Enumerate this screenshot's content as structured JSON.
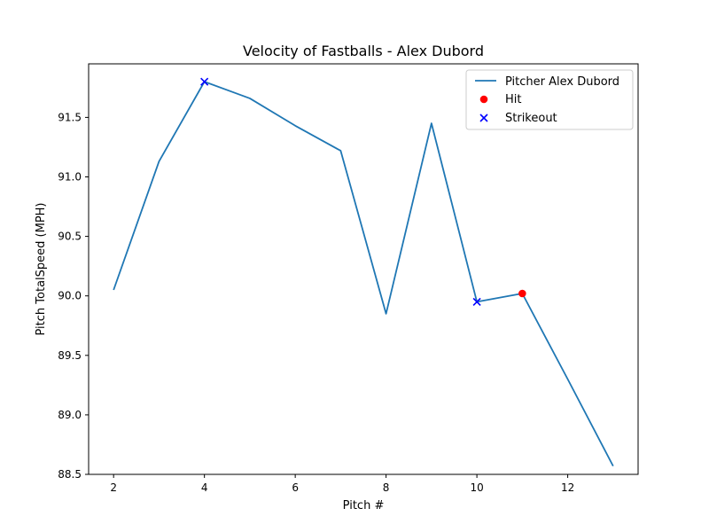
{
  "chart_data": {
    "type": "line",
    "title": "Velocity of Fastballs - Alex Dubord",
    "xlabel": "Pitch #",
    "ylabel": "Pitch TotalSpeed (MPH)",
    "xlim": [
      1.45,
      13.55
    ],
    "ylim": [
      88.5,
      91.95
    ],
    "xticks": [
      2,
      4,
      6,
      8,
      10,
      12
    ],
    "yticks": [
      88.5,
      89.0,
      89.5,
      90.0,
      90.5,
      91.0,
      91.5
    ],
    "ytick_labels": [
      "88.5",
      "89.0",
      "89.5",
      "90.0",
      "90.5",
      "91.0",
      "91.5"
    ],
    "grid": false,
    "legend_position": "top-right",
    "series": [
      {
        "name": "Pitcher Alex Dubord",
        "kind": "line",
        "color": "#1f77b4",
        "x": [
          2,
          3,
          4,
          5,
          6,
          7,
          8,
          9,
          10,
          11,
          12,
          13
        ],
        "y": [
          90.05,
          91.13,
          91.8,
          91.66,
          91.43,
          91.22,
          89.85,
          91.45,
          89.95,
          90.02,
          89.3,
          88.57
        ]
      },
      {
        "name": "Hit",
        "kind": "scatter",
        "marker": "circle",
        "color": "#ff0000",
        "x": [
          11
        ],
        "y": [
          90.02
        ]
      },
      {
        "name": "Strikeout",
        "kind": "scatter",
        "marker": "x",
        "color": "#0000ff",
        "x": [
          4,
          10
        ],
        "y": [
          91.8,
          89.95
        ]
      }
    ]
  }
}
